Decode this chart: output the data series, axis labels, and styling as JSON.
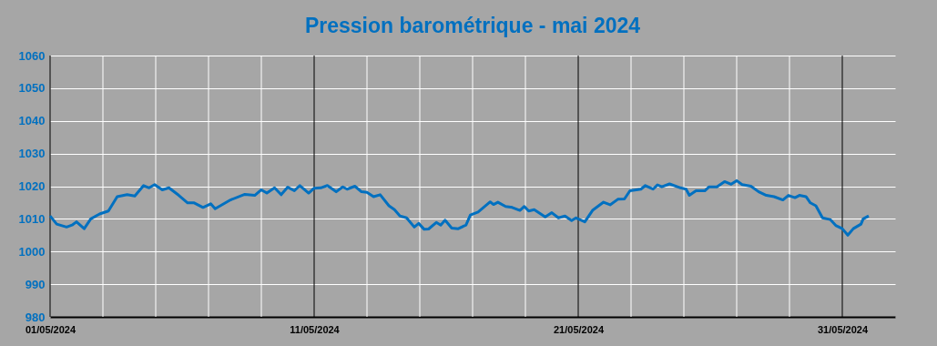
{
  "chart_data": {
    "type": "line",
    "title": "Pression barométrique - mai 2024",
    "x": [
      "2024-05-01T00:00",
      "2024-05-01T06:00",
      "2024-05-01T15:00",
      "2024-05-01T20:00",
      "2024-05-02T00:00",
      "2024-05-02T07:00",
      "2024-05-02T13:00",
      "2024-05-02T21:00",
      "2024-05-03T05:00",
      "2024-05-03T13:00",
      "2024-05-03T22:00",
      "2024-05-04T05:00",
      "2024-05-04T13:00",
      "2024-05-04T18:00",
      "2024-05-04T23:00",
      "2024-05-05T06:00",
      "2024-05-05T12:00",
      "2024-05-05T21:00",
      "2024-05-06T05:00",
      "2024-05-06T11:00",
      "2024-05-06T19:00",
      "2024-05-07T02:00",
      "2024-05-07T06:00",
      "2024-05-07T20:00",
      "2024-05-08T09:00",
      "2024-05-08T18:00",
      "2024-05-09T00:00",
      "2024-05-09T05:00",
      "2024-05-09T12:00",
      "2024-05-09T18:00",
      "2024-05-10T00:00",
      "2024-05-10T06:00",
      "2024-05-10T11:00",
      "2024-05-10T19:00",
      "2024-05-11T00:00",
      "2024-05-11T06:00",
      "2024-05-11T12:00",
      "2024-05-11T20:00",
      "2024-05-12T02:00",
      "2024-05-12T06:00",
      "2024-05-12T13:00",
      "2024-05-12T19:00",
      "2024-05-13T00:00",
      "2024-05-13T06:00",
      "2024-05-13T12:00",
      "2024-05-13T20:00",
      "2024-05-14T01:00",
      "2024-05-14T06:00",
      "2024-05-14T12:00",
      "2024-05-14T19:00",
      "2024-05-14T23:00",
      "2024-05-15T04:00",
      "2024-05-15T08:00",
      "2024-05-15T15:00",
      "2024-05-15T19:00",
      "2024-05-15T23:00",
      "2024-05-16T05:00",
      "2024-05-16T11:00",
      "2024-05-16T18:00",
      "2024-05-16T22:00",
      "2024-05-17T05:00",
      "2024-05-17T16:00",
      "2024-05-17T19:00",
      "2024-05-17T23:00",
      "2024-05-18T06:00",
      "2024-05-18T12:00",
      "2024-05-18T19:00",
      "2024-05-18T23:00",
      "2024-05-19T03:00",
      "2024-05-19T08:00",
      "2024-05-19T18:00",
      "2024-05-20T00:00",
      "2024-05-20T06:00",
      "2024-05-20T12:00",
      "2024-05-20T18:00",
      "2024-05-20T22:00",
      "2024-05-21T06:00",
      "2024-05-21T13:00",
      "2024-05-21T23:00",
      "2024-05-22T05:00",
      "2024-05-22T12:00",
      "2024-05-22T18:00",
      "2024-05-22T23:00",
      "2024-05-23T09:00",
      "2024-05-23T13:00",
      "2024-05-23T20:00",
      "2024-05-24T00:00",
      "2024-05-24T04:00",
      "2024-05-24T11:00",
      "2024-05-24T21:00",
      "2024-05-25T02:00",
      "2024-05-25T05:00",
      "2024-05-25T11:00",
      "2024-05-25T19:00",
      "2024-05-25T23:00",
      "2024-05-26T06:00",
      "2024-05-26T13:00",
      "2024-05-26T19:00",
      "2024-05-27T00:00",
      "2024-05-27T05:00",
      "2024-05-27T13:00",
      "2024-05-27T20:00",
      "2024-05-28T03:00",
      "2024-05-28T10:00",
      "2024-05-28T18:00",
      "2024-05-28T23:00",
      "2024-05-29T05:00",
      "2024-05-29T09:00",
      "2024-05-29T15:00",
      "2024-05-29T19:00",
      "2024-05-30T00:00",
      "2024-05-30T06:00",
      "2024-05-30T13:00",
      "2024-05-30T18:00",
      "2024-05-31T00:00",
      "2024-05-31T05:00",
      "2024-05-31T10:00",
      "2024-05-31T17:00",
      "2024-05-31T19:00",
      "2024-06-01T00:00"
    ],
    "series": [
      {
        "color": "#0070c0",
        "values": [
          1010.9,
          1008.4,
          1007.5,
          1008.1,
          1009.1,
          1007.0,
          1010.0,
          1011.5,
          1012.4,
          1016.8,
          1017.4,
          1017.0,
          1020.2,
          1019.5,
          1020.5,
          1018.9,
          1019.5,
          1017.2,
          1014.9,
          1014.9,
          1013.5,
          1014.6,
          1013.1,
          1015.8,
          1017.5,
          1017.2,
          1018.9,
          1017.9,
          1019.5,
          1017.4,
          1019.7,
          1018.6,
          1020.2,
          1017.9,
          1019.4,
          1019.5,
          1020.2,
          1018.3,
          1019.8,
          1019.1,
          1020.0,
          1018.3,
          1018.1,
          1016.8,
          1017.4,
          1014.0,
          1012.8,
          1010.9,
          1010.3,
          1007.5,
          1008.6,
          1006.8,
          1006.9,
          1008.9,
          1008.1,
          1009.6,
          1007.2,
          1007.0,
          1008.1,
          1011.2,
          1012.1,
          1015.2,
          1014.4,
          1015.1,
          1013.8,
          1013.5,
          1012.6,
          1013.8,
          1012.4,
          1012.8,
          1010.6,
          1011.9,
          1010.3,
          1010.9,
          1009.5,
          1010.3,
          1009.1,
          1012.6,
          1015.1,
          1014.3,
          1016.0,
          1016.1,
          1018.6,
          1019.1,
          1020.2,
          1019.1,
          1020.4,
          1019.8,
          1020.7,
          1019.5,
          1019.1,
          1017.2,
          1018.6,
          1018.6,
          1019.8,
          1019.8,
          1021.4,
          1020.6,
          1021.7,
          1020.5,
          1020.0,
          1018.3,
          1017.2,
          1016.8,
          1015.8,
          1017.2,
          1016.5,
          1017.2,
          1016.8,
          1014.9,
          1014.0,
          1010.3,
          1009.8,
          1008.0,
          1007.0,
          1005.0,
          1007.0,
          1008.4,
          1010.0,
          1010.9
        ]
      }
    ],
    "xlim": [
      "2024-05-01",
      "2024-06-02"
    ],
    "xticks": [
      {
        "value": "2024-05-01",
        "label": "01/05/2024"
      },
      {
        "value": "2024-05-03",
        "label": null
      },
      {
        "value": "2024-05-05",
        "label": null
      },
      {
        "value": "2024-05-07",
        "label": null
      },
      {
        "value": "2024-05-09",
        "label": null
      },
      {
        "value": "2024-05-11",
        "label": "11/05/2024"
      },
      {
        "value": "2024-05-13",
        "label": null
      },
      {
        "value": "2024-05-15",
        "label": null
      },
      {
        "value": "2024-05-17",
        "label": null
      },
      {
        "value": "2024-05-19",
        "label": null
      },
      {
        "value": "2024-05-21",
        "label": "21/05/2024"
      },
      {
        "value": "2024-05-23",
        "label": null
      },
      {
        "value": "2024-05-25",
        "label": null
      },
      {
        "value": "2024-05-27",
        "label": null
      },
      {
        "value": "2024-05-29",
        "label": null
      },
      {
        "value": "2024-05-31",
        "label": "31/05/2024"
      }
    ],
    "ylim": [
      980,
      1060
    ],
    "yticks": [
      980,
      990,
      1000,
      1010,
      1020,
      1030,
      1040,
      1050,
      1060
    ],
    "grid": true,
    "marker": "none",
    "line_style": "solid"
  }
}
